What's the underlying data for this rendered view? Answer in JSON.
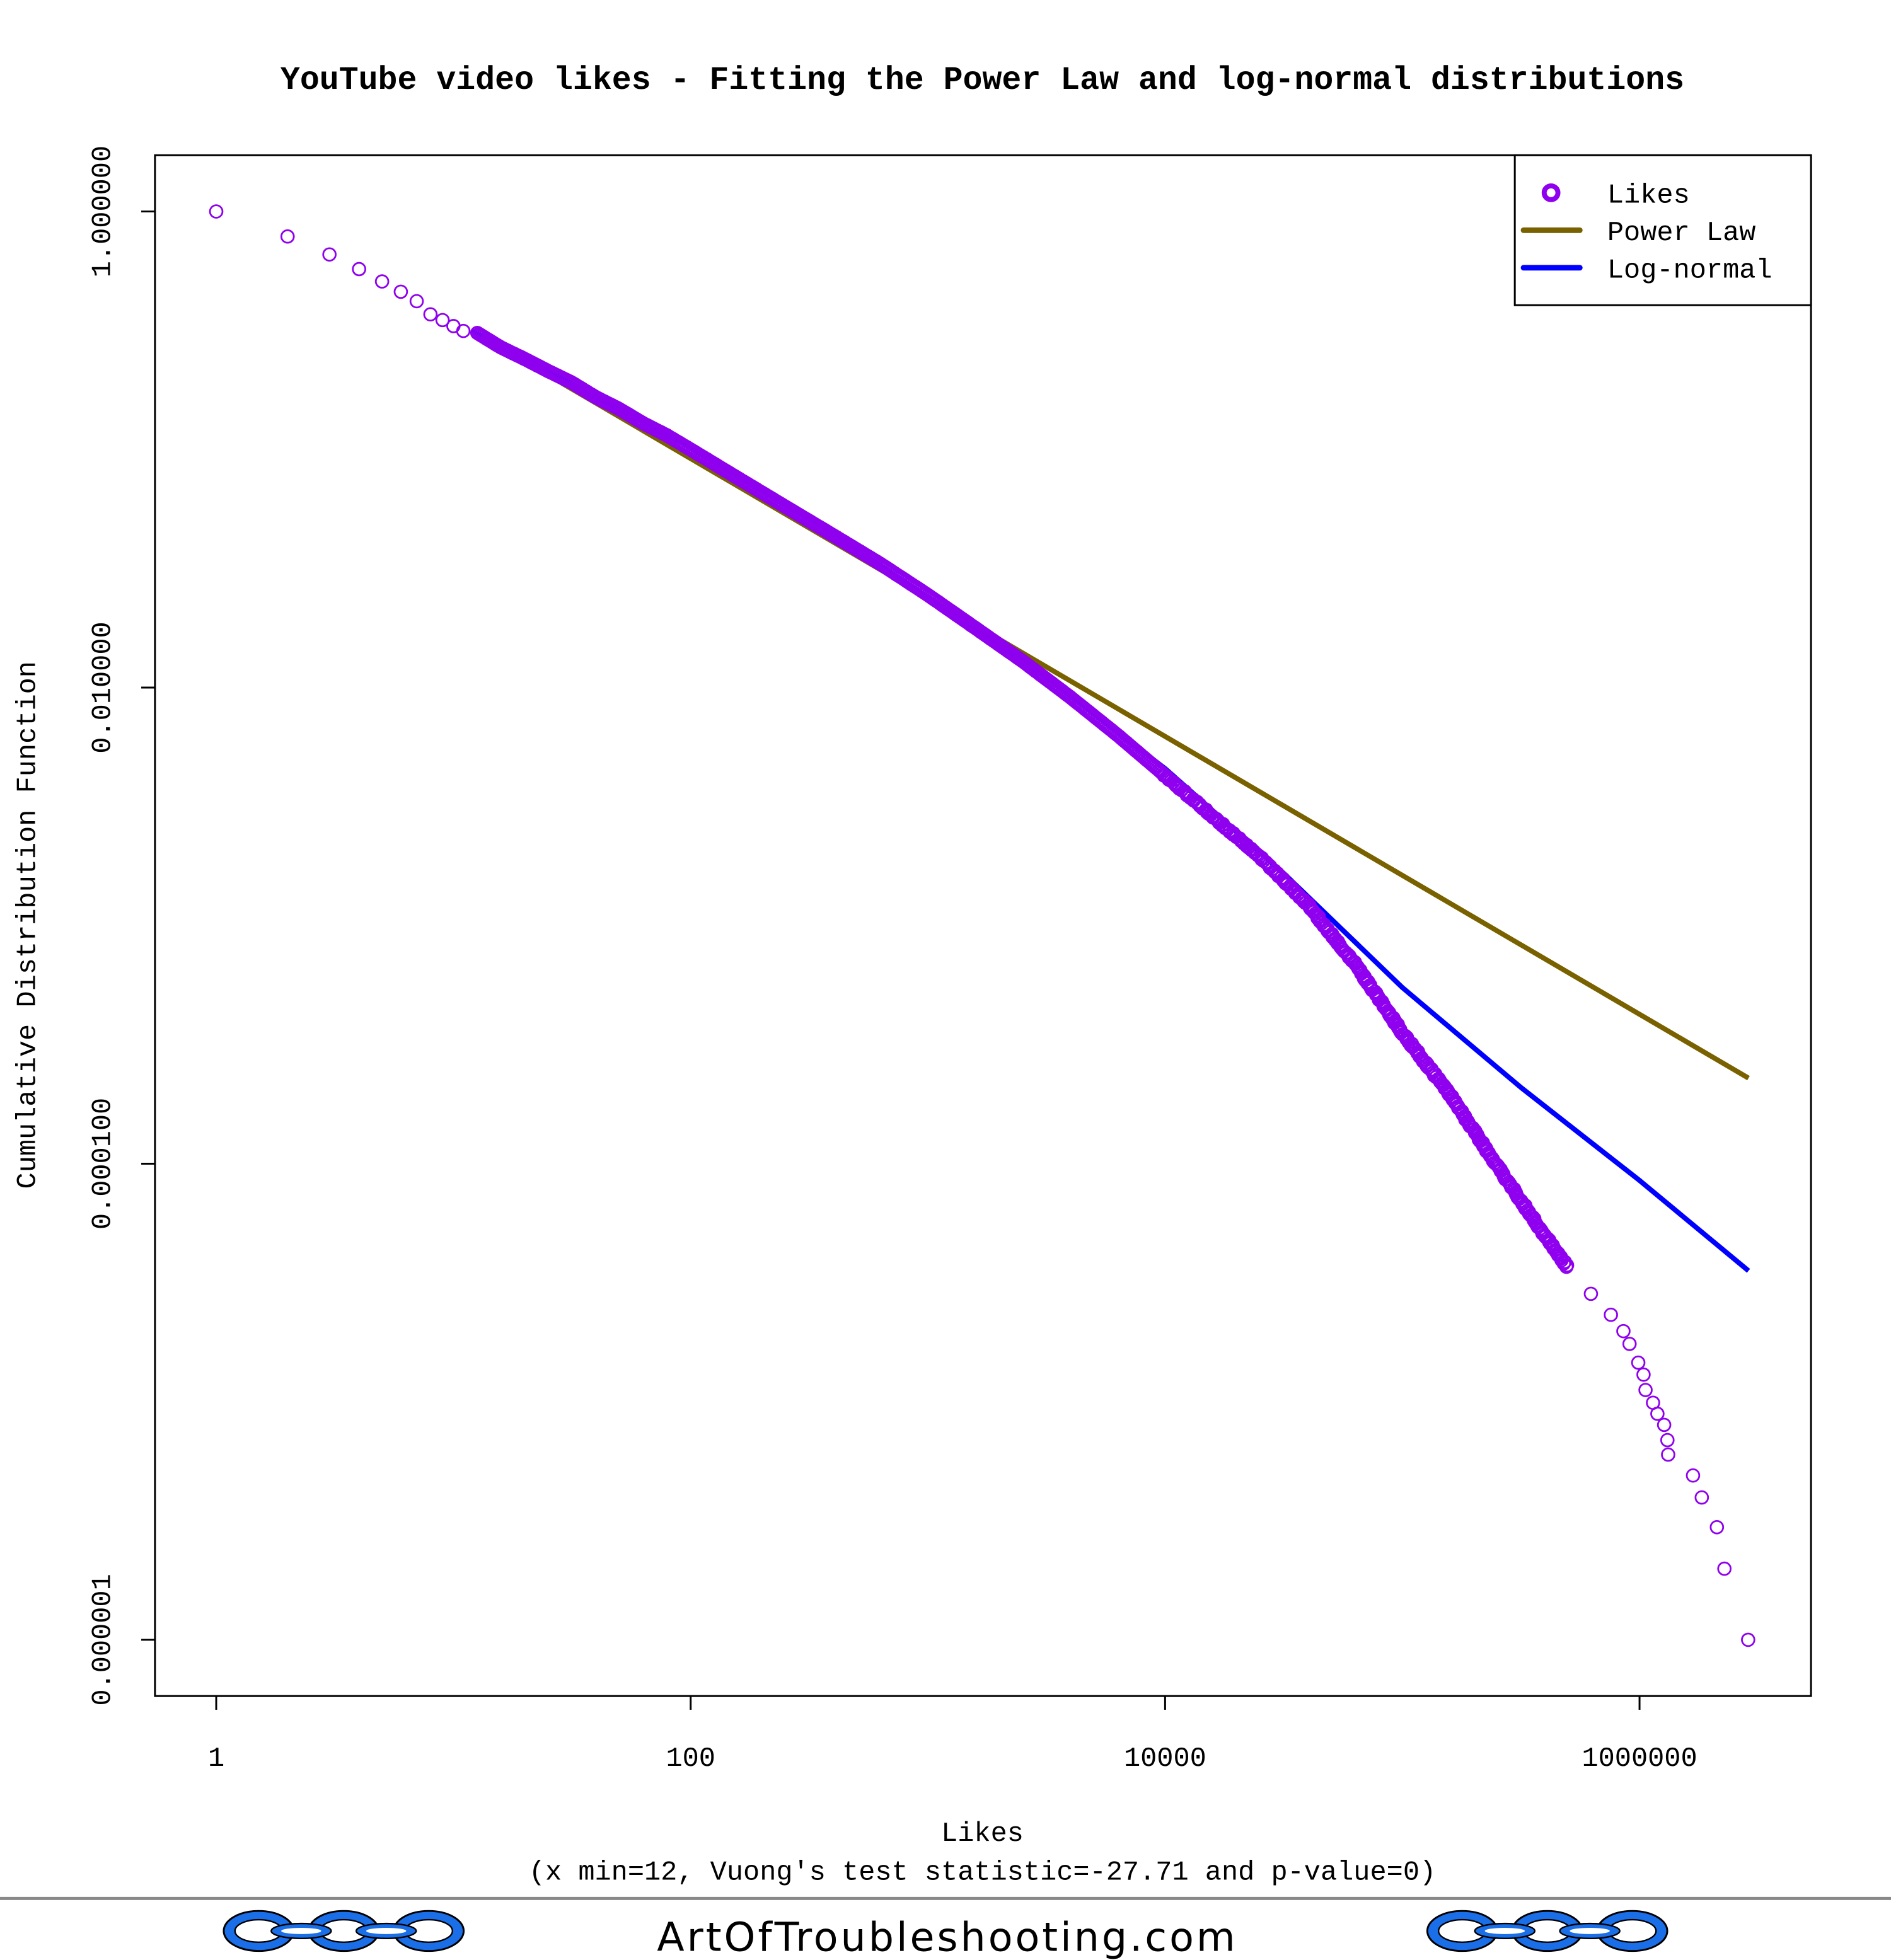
{
  "chart_data": {
    "type": "scatter",
    "title": "YouTube video likes - Fitting the Power Law and log-normal distributions",
    "xlabel": "Likes",
    "subtitle": "(x min=12, Vuong's test statistic=-27.71 and p-value=0)",
    "ylabel": "Cumulative Distribution Function",
    "x_scale": "log",
    "y_scale": "log",
    "xlim": [
      1,
      3000000
    ],
    "ylim": [
      1e-06,
      1
    ],
    "x_ticks": [
      {
        "value": 1,
        "label": "1"
      },
      {
        "value": 100,
        "label": "100"
      },
      {
        "value": 10000,
        "label": "10000"
      },
      {
        "value": 1000000,
        "label": "1000000"
      }
    ],
    "y_ticks": [
      {
        "value": 1,
        "label": "1.000000"
      },
      {
        "value": 0.01,
        "label": "0.010000"
      },
      {
        "value": 0.0001,
        "label": "0.000100"
      },
      {
        "value": 1e-06,
        "label": "0.000001"
      }
    ],
    "legend": {
      "position": "top-right",
      "entries": [
        {
          "label": "Likes",
          "kind": "point",
          "color": "#8f00ef"
        },
        {
          "label": "Power Law",
          "kind": "line",
          "color": "#7a6100"
        },
        {
          "label": "Log-normal",
          "kind": "line",
          "color": "#0000ff"
        }
      ]
    },
    "series": [
      {
        "name": "Likes",
        "kind": "points",
        "color": "#8f00ef",
        "head_points": [
          [
            1,
            1
          ],
          [
            2,
            0.785
          ],
          [
            3,
            0.66
          ],
          [
            4,
            0.573
          ],
          [
            5,
            0.508
          ],
          [
            6,
            0.46
          ],
          [
            7,
            0.42
          ],
          [
            8,
            0.37
          ],
          [
            9,
            0.35
          ],
          [
            10,
            0.33
          ],
          [
            11,
            0.315
          ]
        ],
        "dense_curve": [
          [
            12.6,
            0.309
          ],
          [
            15.8,
            0.269
          ],
          [
            20,
            0.24
          ],
          [
            25,
            0.214
          ],
          [
            31.6,
            0.191
          ],
          [
            39.8,
            0.166
          ],
          [
            50,
            0.148
          ],
          [
            63,
            0.129
          ],
          [
            79,
            0.115
          ],
          [
            100,
            0.1
          ],
          [
            158,
            0.0759
          ],
          [
            251,
            0.0575
          ],
          [
            398,
            0.0437
          ],
          [
            631,
            0.0331
          ],
          [
            1000,
            0.0245
          ],
          [
            1585,
            0.0178
          ],
          [
            2512,
            0.0129
          ],
          [
            3981,
            0.00912
          ],
          [
            6310,
            0.00631
          ],
          [
            10000,
            0.00427
          ],
          [
            15849,
            0.00288
          ],
          [
            25119,
            0.00195
          ],
          [
            39811,
            0.00123
          ],
          [
            63096,
            0.000692
          ],
          [
            100000,
            0.000355
          ],
          [
            158489,
            0.000195
          ],
          [
            251189,
            9.77e-05
          ],
          [
            398107,
            5.01e-05
          ],
          [
            501187,
            3.63e-05
          ]
        ],
        "tail_points": [
          [
            624000,
            2.84e-05
          ],
          [
            757000,
            2.32e-05
          ],
          [
            855000,
            1.98e-05
          ],
          [
            908000,
            1.75e-05
          ],
          [
            988000,
            1.46e-05
          ],
          [
            1040000,
            1.3e-05
          ],
          [
            1060000,
            1.12e-05
          ],
          [
            1140000,
            9.9e-06
          ],
          [
            1190000,
            8.9e-06
          ],
          [
            1270000,
            8e-06
          ],
          [
            1310000,
            6.9e-06
          ],
          [
            1320000,
            6e-06
          ],
          [
            1680000,
            4.9e-06
          ],
          [
            1830000,
            3.96e-06
          ],
          [
            2120000,
            2.97e-06
          ],
          [
            2280000,
            1.99e-06
          ],
          [
            2870000,
            1e-06
          ]
        ]
      },
      {
        "name": "Power Law",
        "kind": "line",
        "color": "#7a6100",
        "points": [
          [
            12,
            0.316
          ],
          [
            2880000,
            0.000229
          ]
        ]
      },
      {
        "name": "Log-normal",
        "kind": "line",
        "color": "#0000ff",
        "points": [
          [
            12,
            0.316
          ],
          [
            100,
            0.102
          ],
          [
            316,
            0.0513
          ],
          [
            1000,
            0.024
          ],
          [
            3162,
            0.011
          ],
          [
            10000,
            0.00457
          ],
          [
            31623,
            0.00166
          ],
          [
            100000,
            0.00055
          ],
          [
            316228,
            0.000209
          ],
          [
            1000000,
            8.5e-05
          ],
          [
            2880000,
            3.55e-05
          ]
        ]
      }
    ]
  },
  "footer": {
    "site": "ArtOfTroubleshooting.com",
    "logo_color": "#1a6fe8"
  }
}
